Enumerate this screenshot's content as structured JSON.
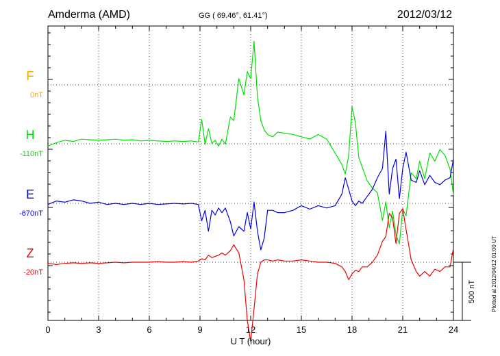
{
  "chart_data": {
    "type": "line",
    "title": "Amderma (AMD)",
    "subtitle": "GG ( 69.46°,  61.41°)",
    "date": "2012/03/12",
    "xlabel": "U T (hour)",
    "xlim": [
      0,
      24
    ],
    "xticks": [
      "0",
      "3",
      "6",
      "9",
      "12",
      "15",
      "18",
      "21",
      "24"
    ],
    "grid": true,
    "scale_label": "500 nT",
    "plotted_note": "Plotted at 2012/04/12 01:00 UT",
    "series": [
      {
        "name": "F",
        "baseline": "0nT",
        "color": "#ffa500",
        "offset": 0,
        "x": [],
        "y": []
      },
      {
        "name": "H",
        "baseline": "-110nT",
        "color": "#00e000",
        "offset": 1,
        "x": [
          0,
          0.5,
          1,
          1.5,
          2,
          2.5,
          3,
          3.5,
          4,
          4.5,
          5,
          5.5,
          6,
          6.5,
          7,
          7.5,
          8,
          8.5,
          8.9,
          9.1,
          9.3,
          9.5,
          9.7,
          9.9,
          10.1,
          10.3,
          10.5,
          10.8,
          11.0,
          11.3,
          11.6,
          11.8,
          12.0,
          12.2,
          12.4,
          12.6,
          12.8,
          13.0,
          13.3,
          13.6,
          14.0,
          14.5,
          15.0,
          15.5,
          16.0,
          16.5,
          17.0,
          17.4,
          17.6,
          17.8,
          18.0,
          18.2,
          18.4,
          18.6,
          18.9,
          19.2,
          19.5,
          19.8,
          20.0,
          20.2,
          20.4,
          20.6,
          20.8,
          21.0,
          21.2,
          21.5,
          21.8,
          22.0,
          22.3,
          22.6,
          22.9,
          23.2,
          23.5,
          23.8,
          24.0
        ],
        "y": [
          -20,
          10,
          30,
          20,
          40,
          35,
          30,
          35,
          40,
          30,
          35,
          25,
          30,
          25,
          20,
          25,
          20,
          25,
          15,
          210,
          -5,
          130,
          5,
          30,
          -20,
          40,
          -5,
          230,
          200,
          560,
          420,
          620,
          560,
          880,
          400,
          200,
          120,
          80,
          60,
          100,
          90,
          80,
          60,
          40,
          80,
          40,
          -80,
          -180,
          -260,
          -100,
          320,
          180,
          -120,
          -200,
          -320,
          -380,
          -420,
          -660,
          -500,
          -720,
          -580,
          -780,
          -860,
          -560,
          -620,
          -250,
          -300,
          -150,
          -300,
          -80,
          -150,
          -50,
          -100,
          -220,
          -440
        ]
      },
      {
        "name": "E",
        "baseline": "-670nT",
        "color": "#0000dd",
        "offset": 2,
        "x": [
          0,
          0.5,
          1,
          1.5,
          2,
          2.5,
          3,
          3.5,
          4,
          4.5,
          5,
          5.5,
          6,
          6.5,
          7,
          7.5,
          8,
          8.5,
          8.9,
          9.1,
          9.3,
          9.5,
          9.7,
          9.9,
          10.1,
          10.3,
          10.5,
          10.8,
          11.0,
          11.3,
          11.6,
          11.8,
          12.0,
          12.2,
          12.4,
          12.6,
          12.8,
          13.0,
          13.3,
          13.6,
          14.0,
          14.5,
          15.0,
          15.5,
          16.0,
          16.5,
          17.0,
          17.4,
          17.6,
          17.8,
          18.0,
          18.2,
          18.4,
          18.6,
          18.9,
          19.2,
          19.5,
          19.8,
          20.0,
          20.2,
          20.4,
          20.6,
          20.8,
          21.0,
          21.2,
          21.5,
          21.8,
          22.0,
          22.3,
          22.6,
          22.9,
          23.2,
          23.5,
          23.8,
          24.0
        ],
        "y": [
          -10,
          20,
          10,
          30,
          20,
          0,
          10,
          -10,
          0,
          -10,
          0,
          -10,
          0,
          -10,
          -5,
          0,
          -5,
          0,
          -10,
          -150,
          -60,
          -240,
          -60,
          -100,
          -40,
          -80,
          -40,
          -160,
          -280,
          -200,
          -240,
          -80,
          -220,
          10,
          -240,
          -400,
          -300,
          -60,
          -60,
          -80,
          -80,
          -60,
          -20,
          -50,
          -20,
          -40,
          -20,
          80,
          220,
          120,
          20,
          -20,
          20,
          0,
          60,
          120,
          220,
          300,
          620,
          80,
          300,
          380,
          40,
          300,
          440,
          200,
          180,
          280,
          160,
          240,
          180,
          160,
          200,
          220,
          380
        ]
      },
      {
        "name": "Z",
        "baseline": "-20nT",
        "color": "#ee0000",
        "offset": 3,
        "x": [
          0,
          0.5,
          1,
          1.5,
          2,
          2.5,
          3,
          3.5,
          4,
          4.5,
          5,
          5.5,
          6,
          6.5,
          7,
          7.5,
          8,
          8.5,
          8.9,
          9.1,
          9.3,
          9.5,
          9.7,
          9.9,
          10.1,
          10.3,
          10.5,
          10.8,
          11.0,
          11.3,
          11.6,
          11.8,
          12.0,
          12.2,
          12.4,
          12.6,
          12.8,
          13.0,
          13.3,
          13.6,
          14.0,
          14.5,
          15.0,
          15.5,
          16.0,
          16.5,
          17.0,
          17.4,
          17.6,
          17.8,
          18.0,
          18.2,
          18.4,
          18.6,
          18.9,
          19.2,
          19.5,
          19.8,
          20.0,
          20.2,
          20.4,
          20.6,
          20.8,
          21.0,
          21.2,
          21.5,
          21.8,
          22.0,
          22.3,
          22.6,
          22.9,
          23.2,
          23.5,
          23.8,
          24.0
        ],
        "y": [
          -10,
          -20,
          -10,
          -5,
          -10,
          -5,
          -10,
          -5,
          0,
          -5,
          0,
          0,
          0,
          5,
          0,
          0,
          5,
          0,
          10,
          30,
          20,
          60,
          40,
          50,
          60,
          80,
          60,
          100,
          150,
          80,
          -150,
          -500,
          -680,
          -400,
          -100,
          0,
          20,
          20,
          10,
          20,
          10,
          10,
          20,
          10,
          0,
          0,
          -10,
          -40,
          -80,
          -150,
          -100,
          -70,
          -80,
          -40,
          -40,
          0,
          60,
          180,
          220,
          420,
          380,
          160,
          420,
          460,
          280,
          20,
          -80,
          -120,
          -80,
          -120,
          -60,
          -80,
          -40,
          -40,
          120
        ]
      }
    ]
  }
}
